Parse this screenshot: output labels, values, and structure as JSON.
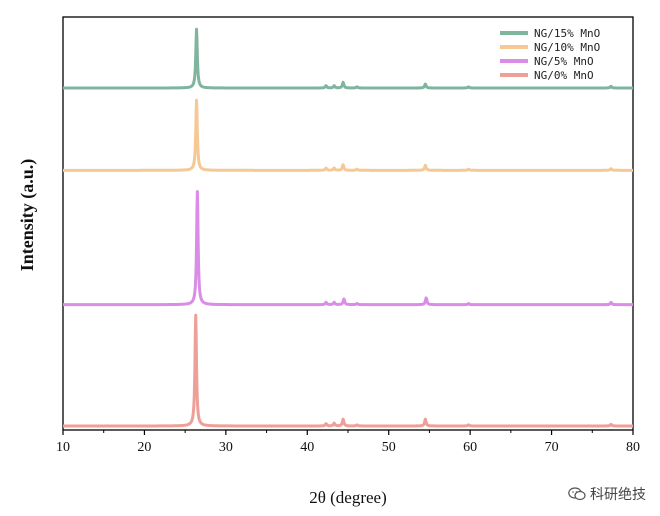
{
  "chart_data": {
    "type": "line",
    "xlabel": "2θ (degree)",
    "ylabel": "Intensity (a.u.)",
    "xlim": [
      10,
      80
    ],
    "xticks": [
      10,
      20,
      30,
      40,
      50,
      60,
      70,
      80
    ],
    "yticks_shown": false,
    "legend_position": "top-right",
    "series": [
      {
        "name": "NG/15% MnO",
        "color": "#7fb49f",
        "baseline": 0.78,
        "peaks": [
          [
            26.4,
            0.52
          ],
          [
            42.3,
            0.02
          ],
          [
            43.3,
            0.02
          ],
          [
            44.4,
            0.05
          ],
          [
            46.1,
            0.01
          ],
          [
            54.5,
            0.035
          ],
          [
            59.8,
            0.01
          ],
          [
            77.3,
            0.015
          ]
        ]
      },
      {
        "name": "NG/10% MnO",
        "color": "#f5c896",
        "baseline": 0.59,
        "peaks": [
          [
            26.4,
            0.62
          ],
          [
            42.3,
            0.02
          ],
          [
            43.3,
            0.02
          ],
          [
            44.4,
            0.05
          ],
          [
            46.1,
            0.01
          ],
          [
            54.5,
            0.045
          ],
          [
            59.8,
            0.01
          ],
          [
            77.3,
            0.015
          ]
        ]
      },
      {
        "name": "NG/5% MnO",
        "color": "#d98de6",
        "baseline": 0.28,
        "peaks": [
          [
            26.5,
            1.0
          ],
          [
            42.3,
            0.02
          ],
          [
            43.3,
            0.02
          ],
          [
            44.5,
            0.05
          ],
          [
            46.1,
            0.01
          ],
          [
            54.6,
            0.06
          ],
          [
            59.8,
            0.01
          ],
          [
            77.3,
            0.02
          ]
        ]
      },
      {
        "name": "NG/0% MnO",
        "color": "#ee9f97",
        "baseline": 0.0,
        "peaks": [
          [
            26.3,
            0.98
          ],
          [
            42.3,
            0.02
          ],
          [
            43.3,
            0.025
          ],
          [
            44.4,
            0.06
          ],
          [
            46.1,
            0.01
          ],
          [
            54.5,
            0.06
          ],
          [
            59.8,
            0.01
          ],
          [
            77.3,
            0.015
          ]
        ]
      }
    ]
  },
  "watermark": {
    "text": "科研绝技",
    "icon": "wechat-icon"
  }
}
